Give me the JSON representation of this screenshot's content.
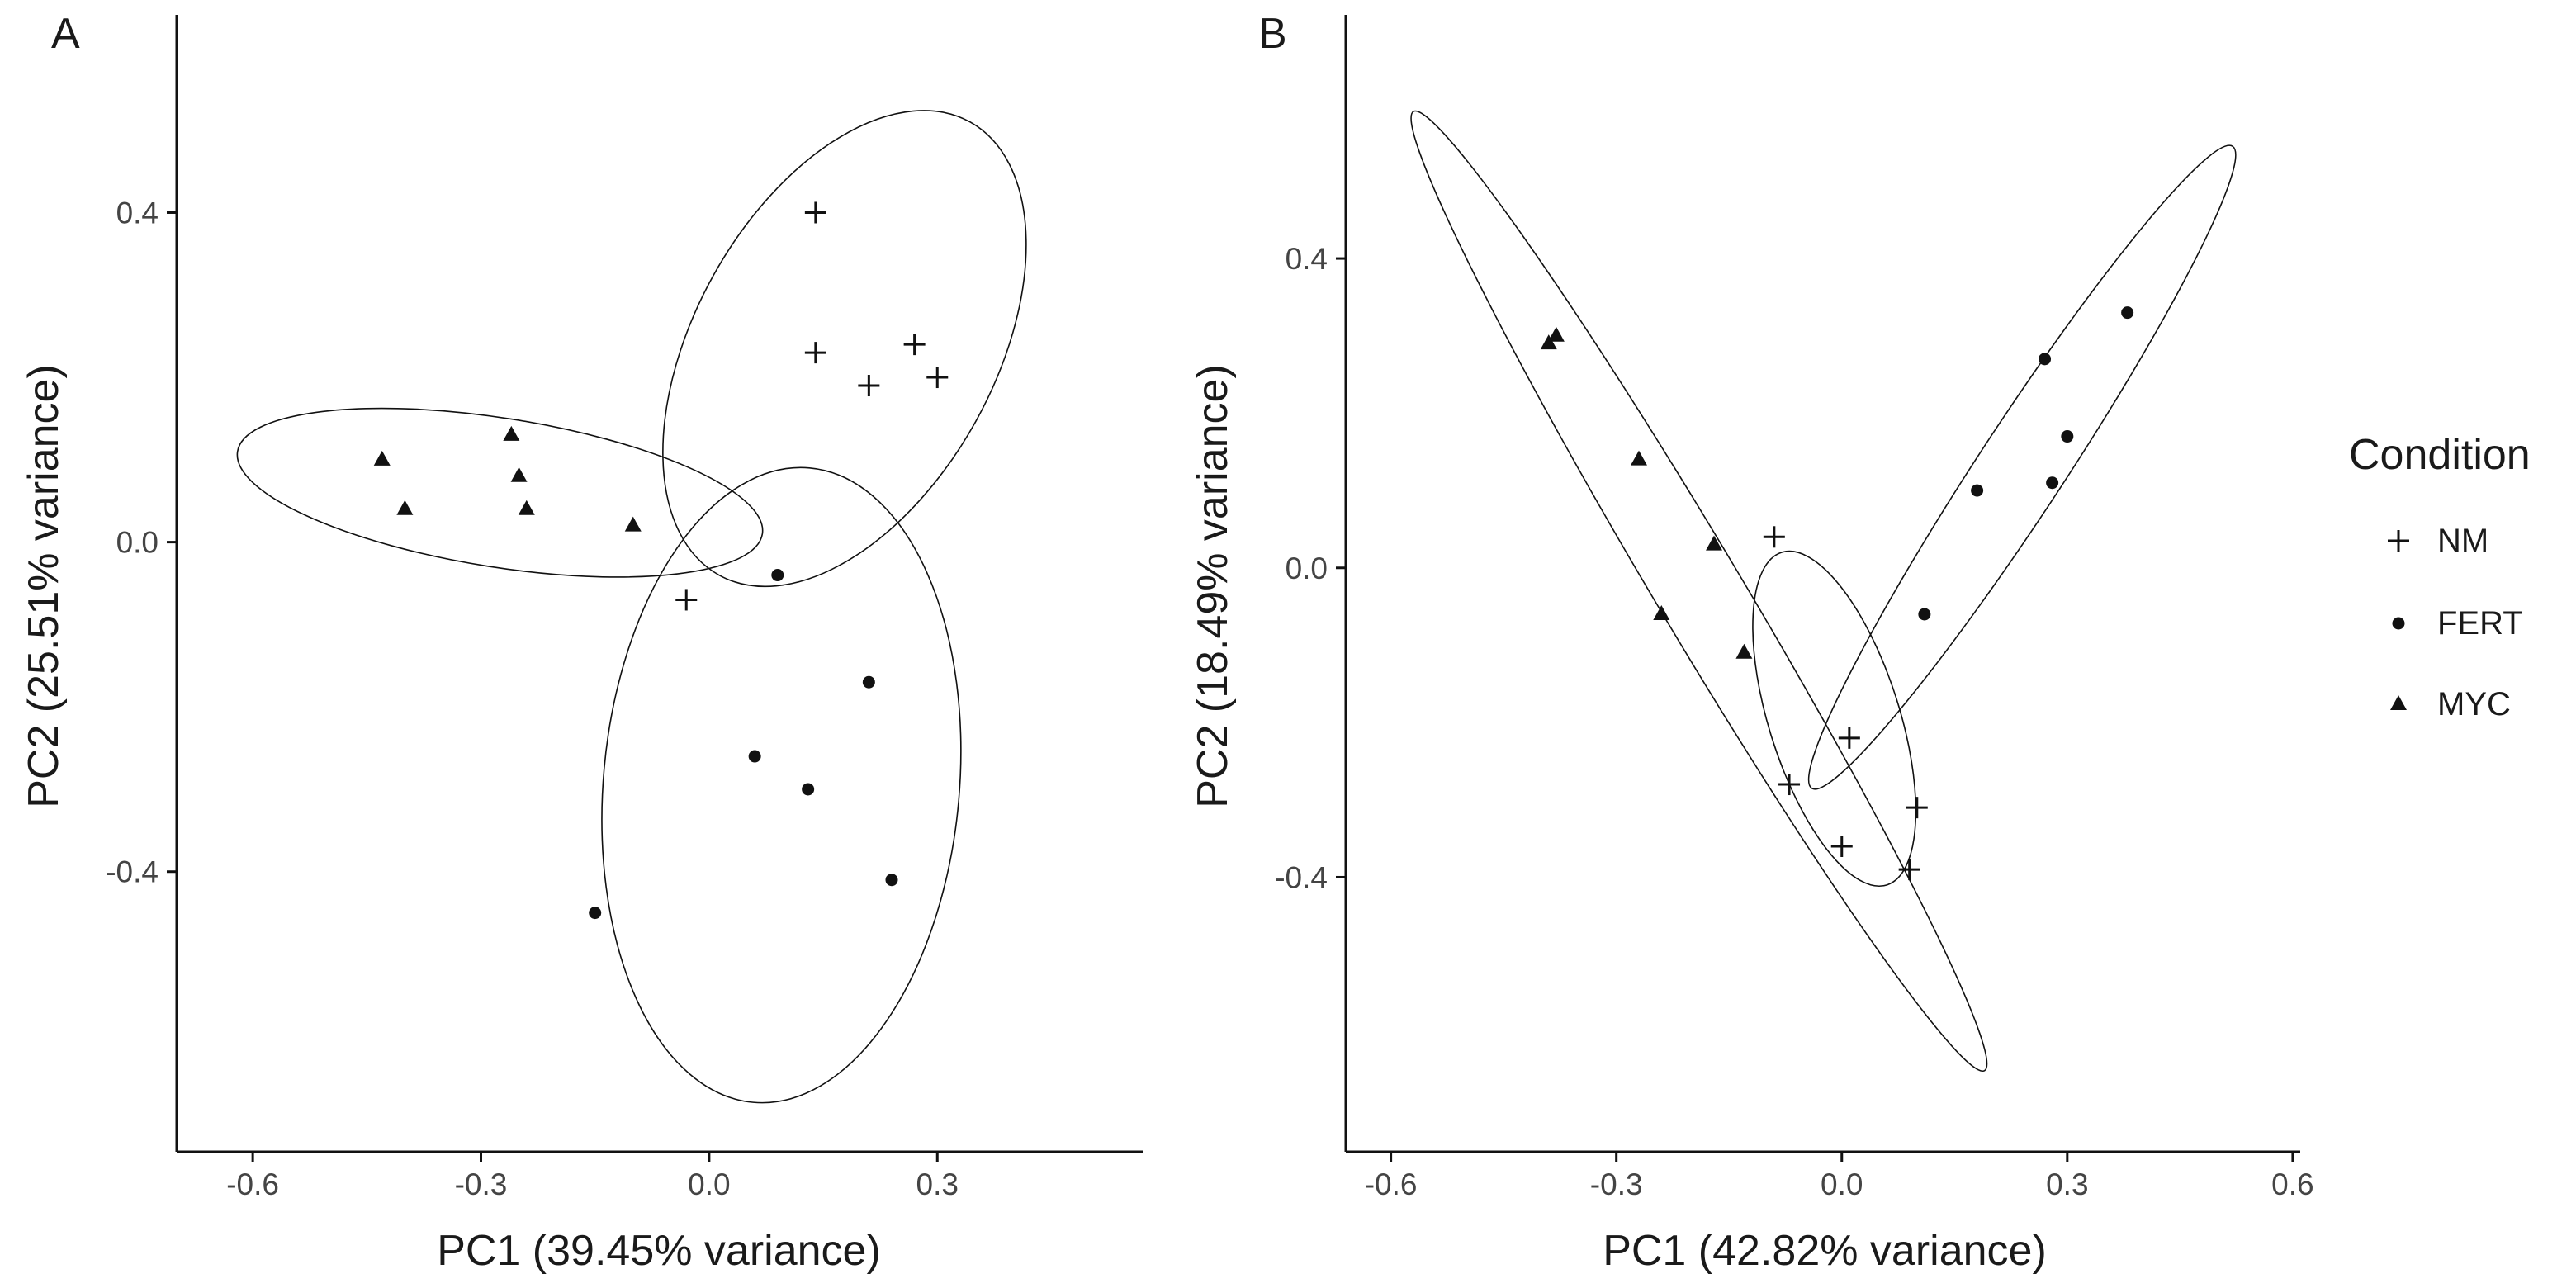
{
  "figure": {
    "background": "#ffffff",
    "ink": "#111111"
  },
  "legend": {
    "title": "Condition",
    "entries": [
      {
        "label": "NM",
        "marker": "plus"
      },
      {
        "label": "FERT",
        "marker": "circle"
      },
      {
        "label": "MYC",
        "marker": "triangle"
      }
    ]
  },
  "chart_data": [
    {
      "type": "scatter",
      "panel": "A",
      "xlabel": "PC1 (39.45% variance)",
      "ylabel": "PC2 (25.51% variance)",
      "xlim": [
        -0.7,
        0.57
      ],
      "ylim": [
        -0.74,
        0.64
      ],
      "xticks": [
        -0.6,
        -0.3,
        0.0,
        0.3
      ],
      "xtick_labels": [
        "-0.6",
        "-0.3",
        "0.0",
        "0.3"
      ],
      "yticks": [
        -0.4,
        0.0,
        0.4
      ],
      "ytick_labels": [
        "-0.4",
        "0.0",
        "0.4"
      ],
      "grid": false,
      "series": [
        {
          "name": "NM",
          "marker": "plus",
          "points": [
            [
              0.14,
              0.4
            ],
            [
              0.14,
              0.23
            ],
            [
              0.27,
              0.24
            ],
            [
              0.21,
              0.19
            ],
            [
              0.3,
              0.2
            ],
            [
              -0.03,
              -0.07
            ]
          ]
        },
        {
          "name": "FERT",
          "marker": "circle",
          "points": [
            [
              0.09,
              -0.04
            ],
            [
              0.21,
              -0.17
            ],
            [
              0.06,
              -0.26
            ],
            [
              0.13,
              -0.3
            ],
            [
              0.24,
              -0.41
            ],
            [
              -0.15,
              -0.45
            ]
          ]
        },
        {
          "name": "MYC",
          "marker": "triangle",
          "points": [
            [
              -0.43,
              0.1
            ],
            [
              -0.4,
              0.04
            ],
            [
              -0.26,
              0.13
            ],
            [
              -0.25,
              0.08
            ],
            [
              -0.24,
              0.04
            ],
            [
              -0.1,
              0.02
            ]
          ]
        }
      ],
      "ellipses": [
        {
          "series": "NM",
          "cx": 0.178,
          "cy": 0.235,
          "angle_deg": 59.0,
          "a_x": 0.165,
          "a_y": 0.275,
          "b_x": -0.165,
          "b_y": 0.1
        },
        {
          "series": "FERT",
          "cx": 0.095,
          "cy": -0.295,
          "angle_deg": 85.0,
          "a_x": 0.037,
          "a_y": 0.385,
          "b_x": -0.233,
          "b_y": 0.02
        },
        {
          "series": "MYC",
          "cx": -0.275,
          "cy": 0.06,
          "angle_deg": -9.0,
          "a_x": 0.345,
          "a_y": -0.05,
          "b_x": 0.01,
          "b_y": 0.09
        }
      ]
    },
    {
      "type": "scatter",
      "panel": "B",
      "xlabel": "PC1 (42.82% variance)",
      "ylabel": "PC2 (18.49% variance)",
      "xlim": [
        -0.66,
        0.61
      ],
      "ylim": [
        -0.755,
        0.715
      ],
      "xticks": [
        -0.6,
        -0.3,
        0.0,
        0.3,
        0.6
      ],
      "xtick_labels": [
        "-0.6",
        "-0.3",
        "0.0",
        "0.3",
        "0.6"
      ],
      "yticks": [
        -0.4,
        0.0,
        0.4
      ],
      "ytick_labels": [
        "-0.4",
        "0.0",
        "0.4"
      ],
      "grid": false,
      "series": [
        {
          "name": "NM",
          "marker": "plus",
          "points": [
            [
              -0.09,
              0.04
            ],
            [
              0.01,
              -0.22
            ],
            [
              -0.07,
              -0.28
            ],
            [
              0.0,
              -0.36
            ],
            [
              0.1,
              -0.31
            ],
            [
              0.09,
              -0.39
            ]
          ]
        },
        {
          "name": "FERT",
          "marker": "circle",
          "points": [
            [
              0.38,
              0.33
            ],
            [
              0.27,
              0.27
            ],
            [
              0.3,
              0.17
            ],
            [
              0.28,
              0.11
            ],
            [
              0.18,
              0.1
            ],
            [
              0.11,
              -0.06
            ]
          ]
        },
        {
          "name": "MYC",
          "marker": "triangle",
          "points": [
            [
              -0.38,
              0.3
            ],
            [
              -0.39,
              0.29
            ],
            [
              -0.27,
              0.14
            ],
            [
              -0.17,
              0.03
            ],
            [
              -0.24,
              -0.06
            ],
            [
              -0.13,
              -0.11
            ]
          ]
        }
      ],
      "ellipses": [
        {
          "series": "MYC",
          "cx": -0.19,
          "cy": -0.03,
          "angle_deg": 56.0,
          "a_x": 0.38,
          "a_y": -0.62,
          "b_x": -0.025,
          "b_y": -0.05
        },
        {
          "series": "FERT",
          "cx": 0.24,
          "cy": 0.13,
          "angle_deg": 41.0,
          "a_x": 0.28,
          "a_y": 0.415,
          "b_x": -0.04,
          "b_y": 0.04
        },
        {
          "series": "NM",
          "cx": -0.01,
          "cy": -0.195,
          "angle_deg": 64.0,
          "a_x": 0.07,
          "a_y": -0.215,
          "b_x": -0.07,
          "b_y": -0.05
        }
      ]
    }
  ]
}
